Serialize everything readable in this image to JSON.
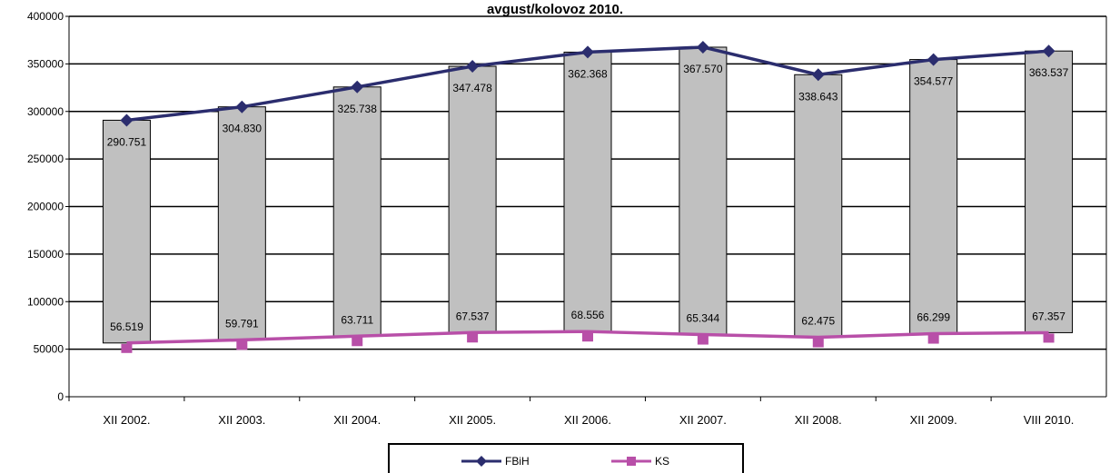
{
  "chart_data": {
    "type": "line",
    "title": "avgust/kolovoz 2010.",
    "categories": [
      "XII 2002.",
      "XII 2003.",
      "XII 2004.",
      "XII 2005.",
      "XII 2006.",
      "XII  2007.",
      "XII 2008.",
      "XII 2009.",
      "VIII 2010."
    ],
    "ylim": [
      0,
      400000
    ],
    "yticks": [
      "0",
      "50000",
      "100000",
      "150000",
      "200000",
      "250000",
      "300000",
      "350000",
      "400000"
    ],
    "grid": true,
    "legend": "bottom-center",
    "series": [
      {
        "name": "FBiH",
        "color": "#2b2d6e",
        "marker": "diamond",
        "values": [
          290751,
          304830,
          325738,
          347478,
          362368,
          367570,
          338643,
          354577,
          363537
        ],
        "labels": [
          "290.751",
          "304.830",
          "325.738",
          "347.478",
          "362.368",
          "367.570",
          "338.643",
          "354.577",
          "363.537"
        ]
      },
      {
        "name": "KS",
        "color": "#b84fa8",
        "marker": "square",
        "values": [
          56519,
          59791,
          63711,
          67537,
          68556,
          65344,
          62475,
          66299,
          67357
        ],
        "labels": [
          "56.519",
          "59.791",
          "63.711",
          "67.537",
          "68.556",
          "65.344",
          "62.475",
          "66.299",
          "67.357"
        ]
      }
    ],
    "bar_color": "#c0c0c0"
  }
}
